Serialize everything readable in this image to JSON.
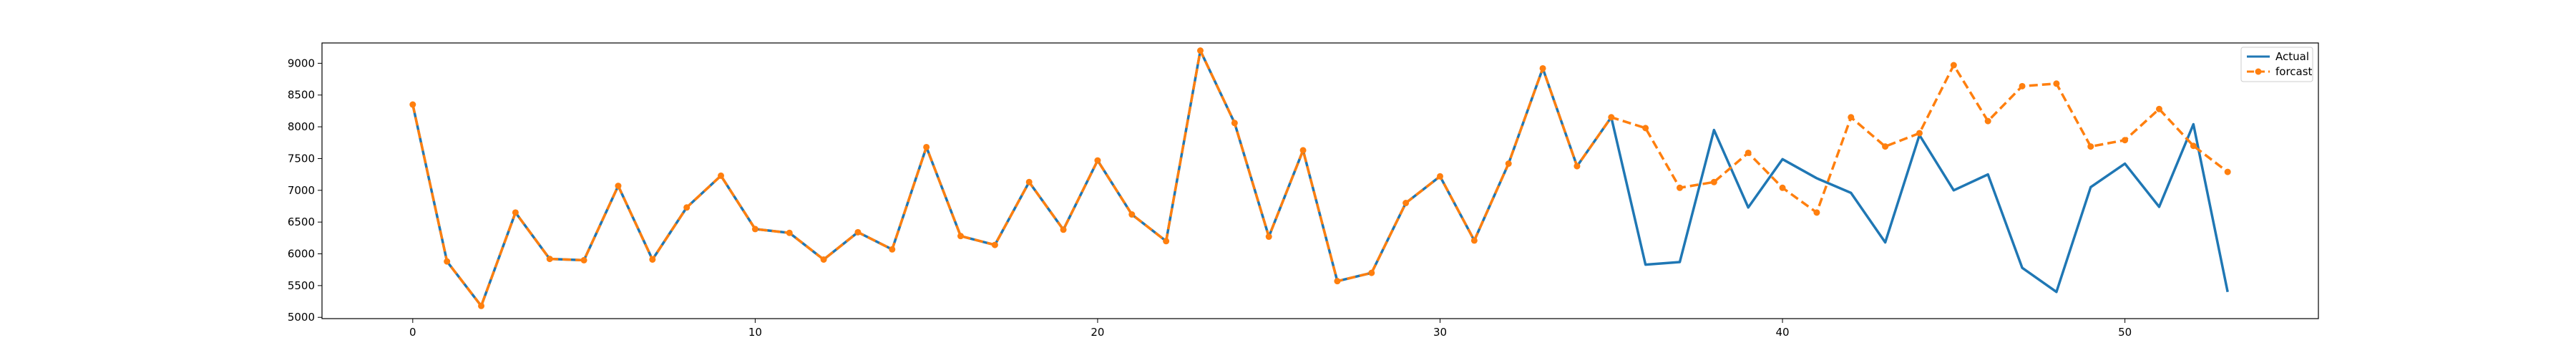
{
  "chart_data": {
    "type": "line",
    "title": "",
    "xlabel": "",
    "ylabel": "",
    "xlim": [
      -2.65,
      55.65
    ],
    "ylim": [
      4980,
      9320
    ],
    "xticks": [
      0,
      10,
      20,
      30,
      40,
      50
    ],
    "yticks": [
      5000,
      5500,
      6000,
      6500,
      7000,
      7500,
      8000,
      8500,
      9000
    ],
    "grid": false,
    "legend_position": "top-right",
    "colors": {
      "actual": "#1f77b4",
      "forecast": "#ff7f0e"
    },
    "series": [
      {
        "name": "Actual",
        "style": "solid",
        "marker": "none",
        "x": [
          0,
          1,
          2,
          3,
          4,
          5,
          6,
          7,
          8,
          9,
          10,
          11,
          12,
          13,
          14,
          15,
          16,
          17,
          18,
          19,
          20,
          21,
          22,
          23,
          24,
          25,
          26,
          27,
          28,
          29,
          30,
          31,
          32,
          33,
          34,
          35,
          36,
          37,
          38,
          39,
          40,
          41,
          42,
          43,
          44,
          45,
          46,
          47,
          48,
          49,
          50,
          51,
          52,
          53
        ],
        "values": [
          8350,
          5880,
          5180,
          6650,
          5920,
          5900,
          7070,
          5910,
          6730,
          7230,
          6390,
          6330,
          5910,
          6340,
          6070,
          7680,
          6280,
          6140,
          7130,
          6380,
          7470,
          6620,
          6200,
          9200,
          8060,
          6270,
          7630,
          5570,
          5700,
          6800,
          7220,
          6210,
          7420,
          8920,
          7380,
          8150,
          5830,
          5870,
          7950,
          6730,
          7490,
          7190,
          6960,
          6180,
          7870,
          7000,
          7250,
          5780,
          5400,
          7050,
          7420,
          6740,
          8040,
          5400
        ]
      },
      {
        "name": "forcast",
        "style": "dashed",
        "marker": "circle",
        "x": [
          0,
          1,
          2,
          3,
          4,
          5,
          6,
          7,
          8,
          9,
          10,
          11,
          12,
          13,
          14,
          15,
          16,
          17,
          18,
          19,
          20,
          21,
          22,
          23,
          24,
          25,
          26,
          27,
          28,
          29,
          30,
          31,
          32,
          33,
          34,
          35,
          36,
          37,
          38,
          39,
          40,
          41,
          42,
          43,
          44,
          45,
          46,
          47,
          48,
          49,
          50,
          51,
          52,
          53
        ],
        "values": [
          8350,
          5880,
          5180,
          6650,
          5920,
          5900,
          7070,
          5910,
          6730,
          7230,
          6390,
          6330,
          5910,
          6340,
          6070,
          7680,
          6280,
          6140,
          7130,
          6380,
          7470,
          6620,
          6200,
          9200,
          8060,
          6270,
          7630,
          5570,
          5700,
          6800,
          7220,
          6210,
          7420,
          8920,
          7380,
          8150,
          7980,
          7040,
          7130,
          7590,
          7040,
          6650,
          8150,
          7690,
          7900,
          8970,
          8090,
          8640,
          8680,
          7690,
          7790,
          8280,
          7700,
          7290
        ]
      }
    ]
  }
}
